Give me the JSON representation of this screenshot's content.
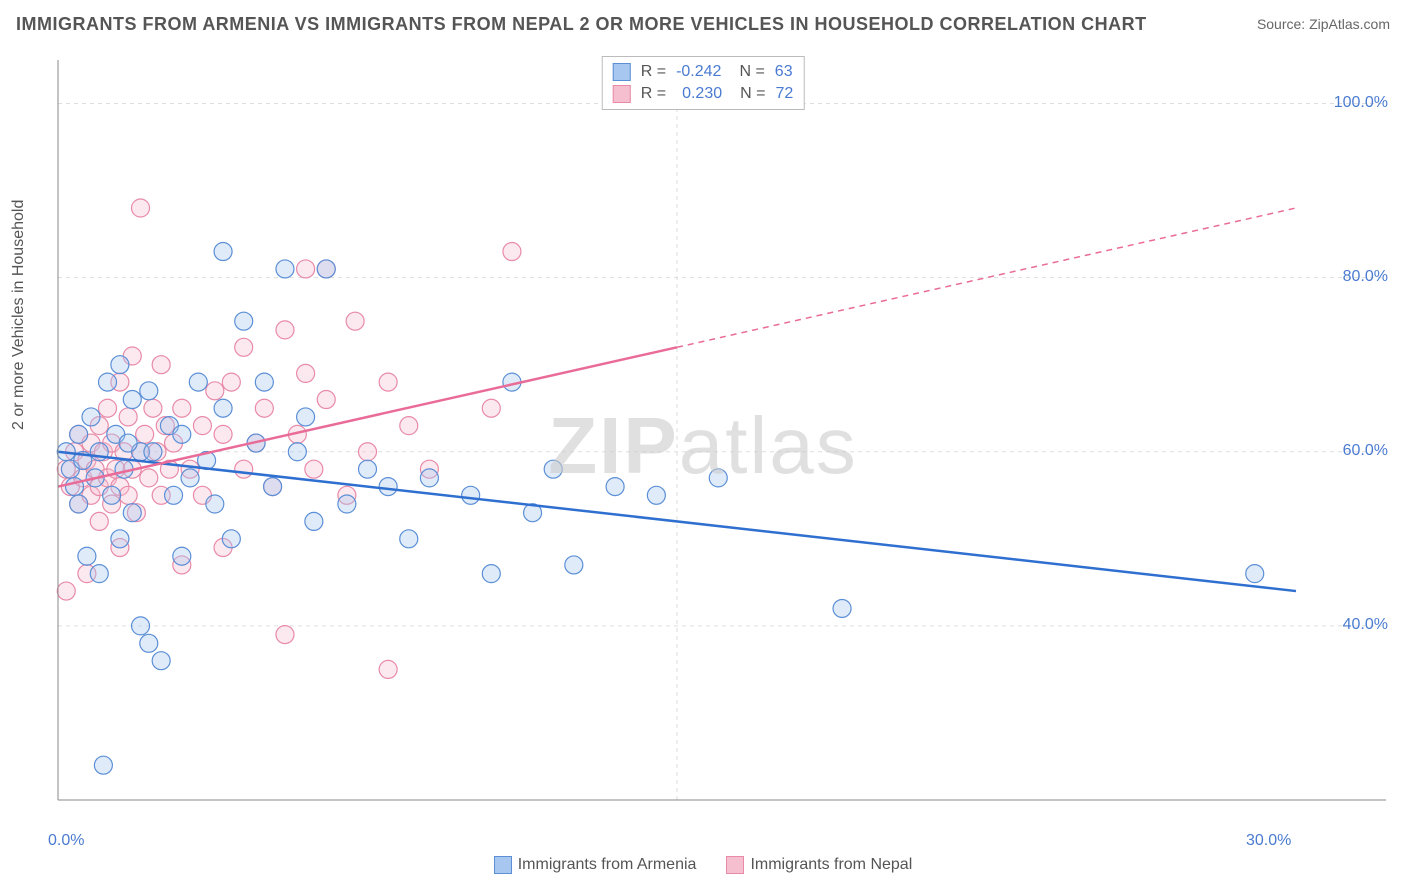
{
  "title": "IMMIGRANTS FROM ARMENIA VS IMMIGRANTS FROM NEPAL 2 OR MORE VEHICLES IN HOUSEHOLD CORRELATION CHART",
  "source_label": "Source: ",
  "source_value": "ZipAtlas.com",
  "y_axis_label": "2 or more Vehicles in Household",
  "watermark_bold": "ZIP",
  "watermark_light": "atlas",
  "chart": {
    "type": "scatter",
    "background_color": "#ffffff",
    "grid_color": "#dddddd",
    "grid_dash": "4,4",
    "axis_line_color": "#888888",
    "x_domain": [
      0,
      30
    ],
    "y_domain": [
      20,
      105
    ],
    "x_ticks": [
      {
        "v": 0,
        "label": "0.0%"
      },
      {
        "v": 30,
        "label": "30.0%"
      }
    ],
    "y_ticks": [
      {
        "v": 40,
        "label": "40.0%"
      },
      {
        "v": 60,
        "label": "60.0%"
      },
      {
        "v": 80,
        "label": "80.0%"
      },
      {
        "v": 100,
        "label": "100.0%"
      }
    ],
    "tick_color": "#4a7bd0",
    "tick_fontsize": 16,
    "marker_radius": 9,
    "marker_fill_opacity": 0.35,
    "marker_stroke_width": 1.2,
    "line_width": 2.5,
    "dash_pattern": "6,5"
  },
  "series": {
    "armenia": {
      "label": "Immigrants from Armenia",
      "fill": "#a7c7f0",
      "stroke": "#5b8fd6",
      "line_color": "#2f6fd0",
      "R": "-0.242",
      "N": "63",
      "trend": {
        "x1": 0,
        "y1": 60,
        "x2": 30,
        "y2": 44,
        "solid_until_x": 30
      },
      "points": [
        [
          0.2,
          60
        ],
        [
          0.3,
          58
        ],
        [
          0.4,
          56
        ],
        [
          0.5,
          62
        ],
        [
          0.6,
          59
        ],
        [
          0.7,
          48
        ],
        [
          0.8,
          64
        ],
        [
          0.9,
          57
        ],
        [
          1.0,
          60
        ],
        [
          1.0,
          46
        ],
        [
          1.2,
          68
        ],
        [
          1.3,
          55
        ],
        [
          1.4,
          62
        ],
        [
          1.5,
          50
        ],
        [
          1.5,
          70
        ],
        [
          1.6,
          58
        ],
        [
          1.8,
          66
        ],
        [
          1.8,
          53
        ],
        [
          2.0,
          60
        ],
        [
          2.0,
          40
        ],
        [
          2.2,
          67
        ],
        [
          2.2,
          38
        ],
        [
          2.5,
          36
        ],
        [
          2.7,
          63
        ],
        [
          2.8,
          55
        ],
        [
          3.0,
          62
        ],
        [
          3.0,
          48
        ],
        [
          3.2,
          57
        ],
        [
          3.4,
          68
        ],
        [
          3.6,
          59
        ],
        [
          3.8,
          54
        ],
        [
          4.0,
          65
        ],
        [
          4.0,
          83
        ],
        [
          4.2,
          50
        ],
        [
          4.5,
          75
        ],
        [
          4.8,
          61
        ],
        [
          5.0,
          68
        ],
        [
          5.2,
          56
        ],
        [
          5.5,
          81
        ],
        [
          5.8,
          60
        ],
        [
          6.0,
          64
        ],
        [
          6.2,
          52
        ],
        [
          6.5,
          81
        ],
        [
          7.0,
          54
        ],
        [
          7.5,
          58
        ],
        [
          8.0,
          56
        ],
        [
          8.5,
          50
        ],
        [
          9.0,
          57
        ],
        [
          10.0,
          55
        ],
        [
          10.5,
          46
        ],
        [
          11.0,
          68
        ],
        [
          11.5,
          53
        ],
        [
          12.0,
          58
        ],
        [
          12.5,
          47
        ],
        [
          13.5,
          56
        ],
        [
          14.5,
          55
        ],
        [
          16.0,
          57
        ],
        [
          19.0,
          42
        ],
        [
          29.0,
          46
        ],
        [
          2.3,
          60
        ],
        [
          1.1,
          24
        ],
        [
          0.5,
          54
        ],
        [
          1.7,
          61
        ]
      ]
    },
    "nepal": {
      "label": "Immigrants from Nepal",
      "fill": "#f5bfd0",
      "stroke": "#e88aa8",
      "line_color": "#e96b98",
      "R": "0.230",
      "N": "72",
      "trend": {
        "x1": 0,
        "y1": 56,
        "x2": 30,
        "y2": 88,
        "solid_until_x": 15
      },
      "points": [
        [
          0.2,
          58
        ],
        [
          0.3,
          56
        ],
        [
          0.4,
          60
        ],
        [
          0.5,
          54
        ],
        [
          0.5,
          62
        ],
        [
          0.6,
          57
        ],
        [
          0.7,
          59
        ],
        [
          0.7,
          46
        ],
        [
          0.8,
          61
        ],
        [
          0.8,
          55
        ],
        [
          0.9,
          58
        ],
        [
          1.0,
          56
        ],
        [
          1.0,
          63
        ],
        [
          1.0,
          52
        ],
        [
          1.1,
          60
        ],
        [
          1.2,
          57
        ],
        [
          1.2,
          65
        ],
        [
          1.3,
          54
        ],
        [
          1.3,
          61
        ],
        [
          1.4,
          58
        ],
        [
          1.5,
          56
        ],
        [
          1.5,
          68
        ],
        [
          1.5,
          49
        ],
        [
          1.6,
          60
        ],
        [
          1.7,
          55
        ],
        [
          1.7,
          64
        ],
        [
          1.8,
          58
        ],
        [
          1.8,
          71
        ],
        [
          1.9,
          53
        ],
        [
          2.0,
          60
        ],
        [
          2.0,
          88
        ],
        [
          2.1,
          62
        ],
        [
          2.2,
          57
        ],
        [
          2.3,
          65
        ],
        [
          2.4,
          60
        ],
        [
          2.5,
          55
        ],
        [
          2.5,
          70
        ],
        [
          2.6,
          63
        ],
        [
          2.7,
          58
        ],
        [
          2.8,
          61
        ],
        [
          3.0,
          65
        ],
        [
          3.0,
          47
        ],
        [
          3.2,
          58
        ],
        [
          3.5,
          63
        ],
        [
          3.5,
          55
        ],
        [
          3.8,
          67
        ],
        [
          4.0,
          62
        ],
        [
          4.0,
          49
        ],
        [
          4.2,
          68
        ],
        [
          4.5,
          58
        ],
        [
          4.5,
          72
        ],
        [
          4.8,
          61
        ],
        [
          5.0,
          65
        ],
        [
          5.2,
          56
        ],
        [
          5.5,
          74
        ],
        [
          5.5,
          39
        ],
        [
          5.8,
          62
        ],
        [
          6.0,
          69
        ],
        [
          6.0,
          81
        ],
        [
          6.2,
          58
        ],
        [
          6.5,
          81
        ],
        [
          6.5,
          66
        ],
        [
          7.0,
          55
        ],
        [
          7.2,
          75
        ],
        [
          7.5,
          60
        ],
        [
          8.0,
          68
        ],
        [
          8.0,
          35
        ],
        [
          8.5,
          63
        ],
        [
          9.0,
          58
        ],
        [
          10.5,
          65
        ],
        [
          11.0,
          83
        ],
        [
          0.2,
          44
        ]
      ]
    }
  },
  "top_legend": {
    "R_label": "R =",
    "N_label": "N ="
  }
}
